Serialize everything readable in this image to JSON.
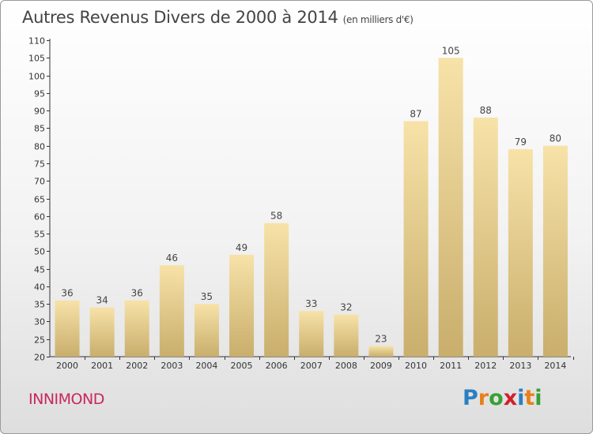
{
  "title": "Autres Revenus Divers de 2000 à 2014",
  "title_unit": "(en milliers d'€)",
  "commune": "INNIMOND",
  "logo": {
    "letters": [
      "P",
      "r",
      "o",
      "x",
      "i",
      "t",
      "i"
    ],
    "colors": [
      "#2a7fc1",
      "#e8801a",
      "#39a035",
      "#d0202c",
      "#2a7fc1",
      "#e8801a",
      "#39a035"
    ]
  },
  "colors": {
    "bar_light": "#f7e2a8",
    "bar_dark": "#c9ae6c",
    "axis": "#333333",
    "grid": "#cccccc",
    "commune": "#c8285a"
  },
  "chart_data": {
    "type": "bar",
    "categories": [
      "2000",
      "2001",
      "2002",
      "2003",
      "2004",
      "2005",
      "2006",
      "2007",
      "2008",
      "2009",
      "2010",
      "2011",
      "2012",
      "2013",
      "2014"
    ],
    "values": [
      36,
      34,
      36,
      46,
      35,
      49,
      58,
      33,
      32,
      23,
      87,
      105,
      88,
      79,
      80
    ],
    "ylim": [
      20,
      110
    ],
    "yticks": [
      20,
      25,
      30,
      35,
      40,
      45,
      50,
      55,
      60,
      65,
      70,
      75,
      80,
      85,
      90,
      95,
      100,
      105,
      110
    ],
    "xlabel": "",
    "ylabel": "",
    "data_labels": true,
    "grid": false
  }
}
